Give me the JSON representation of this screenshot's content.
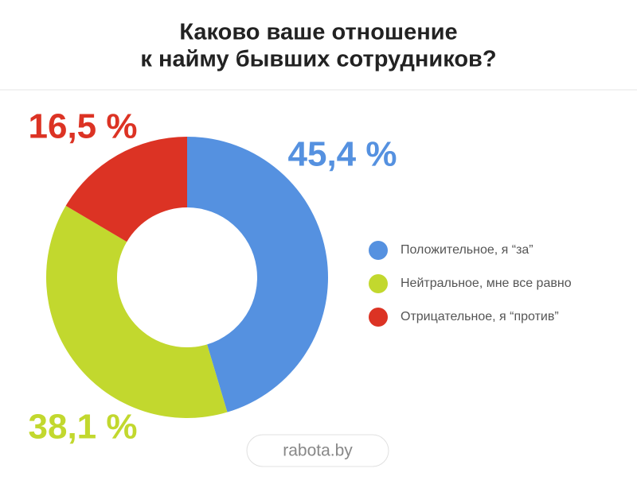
{
  "chart_data": {
    "type": "donut",
    "title": [
      "Каково ваше отношение",
      "к найму бывших сотрудников?"
    ],
    "categories": [
      "Положительное, я “за”",
      "Нейтральное, мне все равно",
      "Отрицательное, я “против”"
    ],
    "values": [
      45.4,
      38.1,
      16.5
    ],
    "value_labels": [
      "45,4 %",
      "38,1 %",
      "16,5 %"
    ],
    "colors": [
      "#5591e0",
      "#c2d82e",
      "#dc3324"
    ],
    "legend": "right",
    "source": "rabota.by"
  }
}
